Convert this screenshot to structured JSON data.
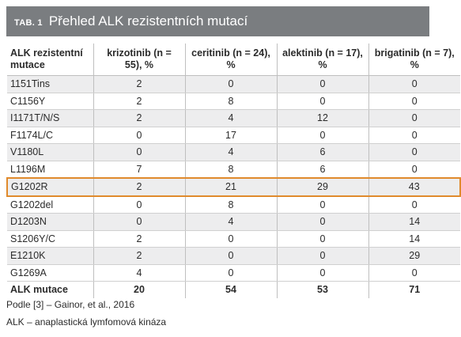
{
  "header": {
    "label": "TAB. 1",
    "title": "Přehled ALK rezistentních mutací",
    "background": "#7a7d80"
  },
  "table": {
    "columns": [
      "ALK rezistentní mutace",
      "krizotinib (n = 55), %",
      "ceritinib (n = 24), %",
      "alektinib (n = 17), %",
      "brigatinib (n = 7), %"
    ],
    "rows": [
      [
        "1151Tins",
        "2",
        "0",
        "0",
        "0"
      ],
      [
        "C1156Y",
        "2",
        "8",
        "0",
        "0"
      ],
      [
        "I1171T/N/S",
        "2",
        "4",
        "12",
        "0"
      ],
      [
        "F1174L/C",
        "0",
        "17",
        "0",
        "0"
      ],
      [
        "V1180L",
        "0",
        "4",
        "6",
        "0"
      ],
      [
        "L1196M",
        "7",
        "8",
        "6",
        "0"
      ],
      [
        "G1202R",
        "2",
        "21",
        "29",
        "43"
      ],
      [
        "G1202del",
        "0",
        "8",
        "0",
        "0"
      ],
      [
        "D1203N",
        "0",
        "4",
        "0",
        "14"
      ],
      [
        "S1206Y/C",
        "2",
        "0",
        "0",
        "14"
      ],
      [
        "E1210K",
        "2",
        "0",
        "0",
        "29"
      ],
      [
        "G1269A",
        "4",
        "0",
        "0",
        "0"
      ]
    ],
    "total": [
      "ALK mutace",
      "20",
      "54",
      "53",
      "71"
    ],
    "highlight_row": "G1202R",
    "highlight_color": "#e08a2c",
    "shade_color": "#ededee"
  },
  "notes": {
    "source": "Podle [3] – Gainor, et al., 2016",
    "abbreviation": "ALK – anaplastická lymfomová kináza"
  }
}
